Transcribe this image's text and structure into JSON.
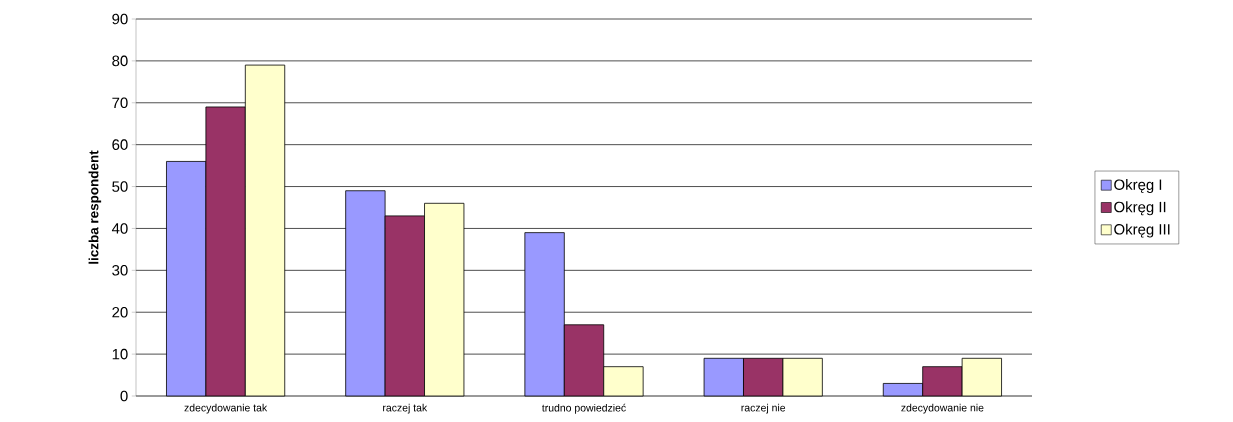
{
  "chart_data": {
    "type": "bar",
    "ylabel": "liczba respondent",
    "categories": [
      "zdecydowanie tak",
      "raczej tak",
      "trudno powiedzieć",
      "raczej nie",
      "zdecydowanie nie"
    ],
    "series": [
      {
        "name": "Okręg I",
        "color": "#9999ff",
        "values": [
          56,
          49,
          39,
          9,
          3
        ]
      },
      {
        "name": "Okręg II",
        "color": "#993366",
        "values": [
          69,
          43,
          17,
          9,
          7
        ]
      },
      {
        "name": "Okręg III",
        "color": "#ffffcc",
        "values": [
          79,
          46,
          7,
          9,
          9
        ]
      }
    ],
    "ylim": [
      0,
      90
    ],
    "yticks": [
      0,
      10,
      20,
      30,
      40,
      50,
      60,
      70,
      80,
      90
    ],
    "grid": "y",
    "legend": "right"
  }
}
